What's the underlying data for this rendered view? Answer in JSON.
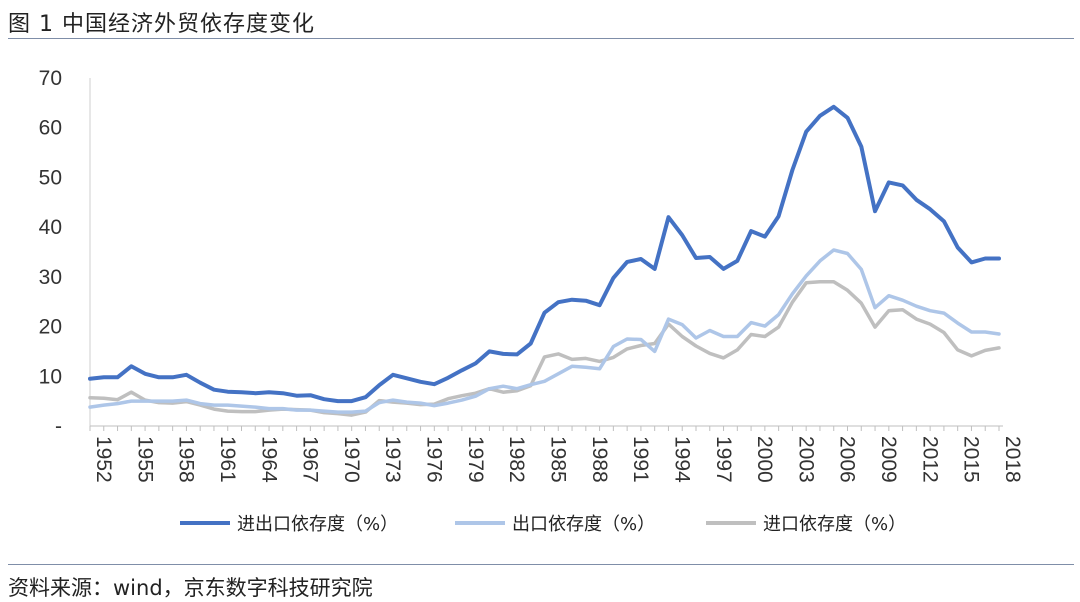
{
  "figure": {
    "title": "图 1  中国经济外贸依存度变化",
    "source": "资料来源：wind，京东数字科技研究院"
  },
  "chart_data": {
    "type": "line",
    "title": "中国经济外贸依存度变化",
    "xlabel": "",
    "ylabel": "",
    "ylim": [
      0,
      70
    ],
    "yticks": [
      "-",
      "10",
      "20",
      "30",
      "40",
      "50",
      "60",
      "70"
    ],
    "x": [
      1952,
      1953,
      1954,
      1955,
      1956,
      1957,
      1958,
      1959,
      1960,
      1961,
      1962,
      1963,
      1964,
      1965,
      1966,
      1967,
      1968,
      1969,
      1970,
      1971,
      1972,
      1973,
      1974,
      1975,
      1976,
      1977,
      1978,
      1979,
      1980,
      1981,
      1982,
      1983,
      1984,
      1985,
      1986,
      1987,
      1988,
      1989,
      1990,
      1991,
      1992,
      1993,
      1994,
      1995,
      1996,
      1997,
      1998,
      1999,
      2000,
      2001,
      2002,
      2003,
      2004,
      2005,
      2006,
      2007,
      2008,
      2009,
      2010,
      2011,
      2012,
      2013,
      2014,
      2015,
      2016,
      2017,
      2018
    ],
    "xtick_labels": [
      "1952",
      "1955",
      "1958",
      "1961",
      "1964",
      "1967",
      "1970",
      "1973",
      "1976",
      "1979",
      "1982",
      "1985",
      "1988",
      "1991",
      "1994",
      "1997",
      "2000",
      "2003",
      "2006",
      "2009",
      "2012",
      "2015",
      "2018"
    ],
    "grid": false,
    "legend_position": "bottom",
    "series": [
      {
        "name": "进出口依存度（%）",
        "color": "#4472c4",
        "values": [
          9.5,
          9.8,
          9.8,
          12.0,
          10.5,
          9.8,
          9.8,
          10.3,
          8.7,
          7.3,
          6.9,
          6.8,
          6.6,
          6.8,
          6.6,
          6.1,
          6.2,
          5.4,
          5.0,
          5.0,
          5.8,
          8.2,
          10.3,
          9.6,
          8.9,
          8.4,
          9.7,
          11.2,
          12.6,
          15.0,
          14.5,
          14.4,
          16.6,
          22.8,
          24.9,
          25.4,
          25.2,
          24.3,
          29.8,
          33.0,
          33.6,
          31.6,
          42.0,
          38.4,
          33.8,
          34.0,
          31.6,
          33.2,
          39.2,
          38.1,
          42.2,
          51.5,
          59.2,
          62.4,
          64.2,
          62.0,
          56.2,
          43.2,
          49.0,
          48.4,
          45.5,
          43.6,
          41.2,
          35.9,
          32.9,
          33.7,
          33.7
        ]
      },
      {
        "name": "出口依存度（%）",
        "color": "#aec6e8",
        "values": [
          3.8,
          4.2,
          4.5,
          5.0,
          5.0,
          5.0,
          5.0,
          5.2,
          4.5,
          4.2,
          4.2,
          4.0,
          3.8,
          3.5,
          3.5,
          3.2,
          3.2,
          3.0,
          2.8,
          2.8,
          3.0,
          4.7,
          5.2,
          4.8,
          4.6,
          4.1,
          4.6,
          5.2,
          6.0,
          7.5,
          8.0,
          7.5,
          8.3,
          9.0,
          10.5,
          12.0,
          11.8,
          11.5,
          16.0,
          17.5,
          17.4,
          15.0,
          21.5,
          20.4,
          17.7,
          19.2,
          18.0,
          18.0,
          20.8,
          20.1,
          22.4,
          26.6,
          30.2,
          33.2,
          35.4,
          34.7,
          31.5,
          23.8,
          26.2,
          25.3,
          24.1,
          23.2,
          22.7,
          20.7,
          18.9,
          18.9,
          18.5
        ]
      },
      {
        "name": "进口依存度（%）",
        "color": "#bfbfbf",
        "values": [
          5.7,
          5.6,
          5.3,
          6.8,
          5.2,
          4.7,
          4.6,
          4.9,
          4.2,
          3.4,
          3.0,
          2.9,
          2.9,
          3.2,
          3.4,
          3.3,
          3.2,
          2.7,
          2.5,
          2.2,
          2.8,
          5.1,
          4.8,
          4.6,
          4.3,
          4.4,
          5.5,
          6.1,
          6.6,
          7.5,
          6.8,
          7.1,
          8.1,
          13.9,
          14.5,
          13.4,
          13.6,
          13.0,
          13.8,
          15.5,
          16.2,
          16.6,
          20.5,
          18.0,
          16.1,
          14.6,
          13.7,
          15.3,
          18.4,
          18.0,
          19.9,
          24.9,
          28.8,
          29.0,
          29.0,
          27.3,
          24.7,
          19.9,
          23.2,
          23.4,
          21.5,
          20.5,
          18.8,
          15.3,
          14.1,
          15.2,
          15.7
        ]
      }
    ]
  }
}
